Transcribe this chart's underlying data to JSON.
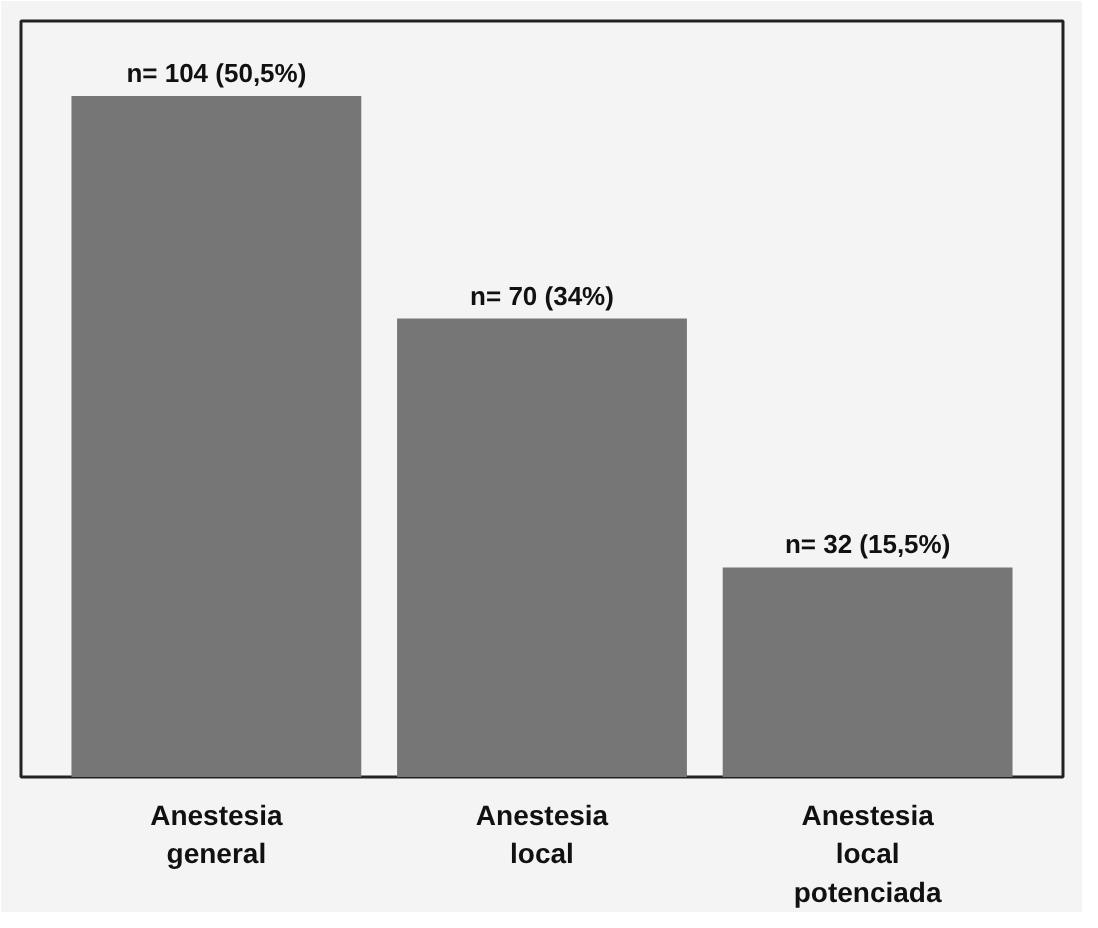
{
  "chart_data": {
    "type": "bar",
    "categories": [
      "Anestesia\ngeneral",
      "Anestesia\nlocal",
      "Anestesia\nlocal\npotenciada"
    ],
    "values": [
      104,
      70,
      32
    ],
    "value_labels": [
      "n= 104 (50,5%)",
      "n= 70 (34%)",
      "n= 32 (15,5%)"
    ],
    "color": "#767676",
    "grid": false
  }
}
